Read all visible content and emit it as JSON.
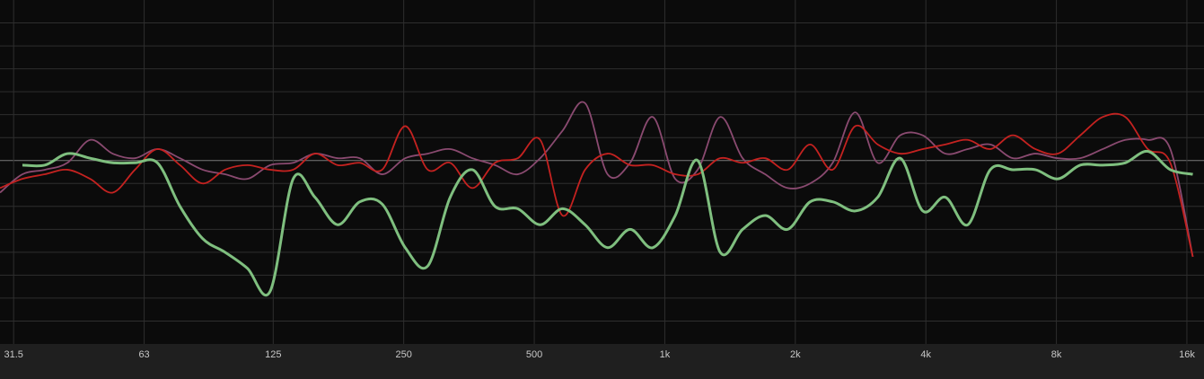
{
  "chart_data": {
    "type": "line",
    "x": [
      29.3,
      33.0,
      37.2,
      41.9,
      47.3,
      53.3,
      60.0,
      67.6,
      76.2,
      85.9,
      96.8,
      109,
      123,
      139,
      156,
      176,
      198,
      223,
      252,
      284,
      320,
      360,
      406,
      458,
      516,
      581,
      655,
      738,
      832,
      938,
      1057,
      1191,
      1342,
      1512,
      1704,
      1921,
      2164,
      2439,
      2749,
      3098,
      3491,
      3935,
      4434,
      4998,
      5632,
      6347,
      7153,
      8061,
      9084,
      10237,
      11536,
      13001,
      14650,
      16510
    ],
    "series": [
      {
        "color": "#8a4a70",
        "values": [
          -1.4,
          -0.6,
          -0.4,
          -0.1,
          0.9,
          0.3,
          0.1,
          0.5,
          0.1,
          -0.4,
          -0.6,
          -0.8,
          -0.2,
          -0.1,
          0.3,
          0.1,
          0.1,
          -0.6,
          0.1,
          0.3,
          0.5,
          0.1,
          -0.2,
          -0.6,
          0.1,
          1.3,
          2.5,
          -0.6,
          -0.1,
          1.9,
          -0.8,
          -0.4,
          1.9,
          0.1,
          -0.6,
          -1.2,
          -1.0,
          -0.1,
          2.1,
          -0.1,
          1.1,
          1.1,
          0.3,
          0.5,
          0.7,
          0.1,
          0.3,
          0.1,
          0.1,
          0.5,
          0.9,
          0.9,
          0.5,
          -4.2
        ]
      },
      {
        "color": "#c42220",
        "values": [
          -1.2,
          -0.8,
          -0.6,
          -0.4,
          -0.8,
          -1.4,
          -0.4,
          0.5,
          -0.2,
          -1.0,
          -0.4,
          -0.2,
          -0.4,
          -0.4,
          0.3,
          -0.2,
          -0.1,
          -0.4,
          1.5,
          -0.4,
          -0.1,
          -1.2,
          -0.1,
          0.1,
          0.9,
          -2.4,
          -0.4,
          0.3,
          -0.2,
          -0.2,
          -0.6,
          -0.6,
          0.1,
          -0.1,
          0.1,
          -0.4,
          0.7,
          -0.4,
          1.5,
          0.7,
          0.3,
          0.5,
          0.7,
          0.9,
          0.5,
          1.1,
          0.5,
          0.3,
          1.1,
          1.9,
          1.9,
          0.5,
          -0.1,
          -4.2
        ]
      },
      {
        "color": "#7fbf7f",
        "values": [
          null,
          -0.2,
          -0.2,
          0.3,
          0.1,
          -0.1,
          -0.1,
          -0.1,
          -2.0,
          -3.4,
          -4.0,
          -4.7,
          -5.7,
          -0.8,
          -1.6,
          -2.8,
          -1.8,
          -1.9,
          -3.8,
          -4.6,
          -1.6,
          -0.4,
          -2.0,
          -2.1,
          -2.8,
          -2.1,
          -2.8,
          -3.8,
          -3.0,
          -3.8,
          -2.4,
          0.0,
          -4.0,
          -3.0,
          -2.4,
          -3.0,
          -1.8,
          -1.8,
          -2.2,
          -1.6,
          0.1,
          -2.2,
          -1.6,
          -2.8,
          -0.4,
          -0.4,
          -0.4,
          -0.8,
          -0.2,
          -0.2,
          -0.1,
          0.4,
          -0.4,
          -0.6
        ]
      }
    ],
    "log_x": true,
    "xlim": [
      29.3,
      17520
    ],
    "xticks": [
      31.5,
      63,
      125,
      250,
      500,
      {
        "value": 1000,
        "label": "1k"
      },
      {
        "value": 2000,
        "label": "2k"
      },
      {
        "value": 4000,
        "label": "4k"
      },
      {
        "value": 8000,
        "label": "8k"
      },
      {
        "value": 16000,
        "label": "16k"
      }
    ],
    "ylim": [
      -8,
      7
    ],
    "yticks": [
      -7,
      -6,
      -5,
      -4,
      -3,
      -2,
      -1,
      0,
      1,
      2,
      3,
      4,
      5,
      6
    ],
    "grid": true
  }
}
